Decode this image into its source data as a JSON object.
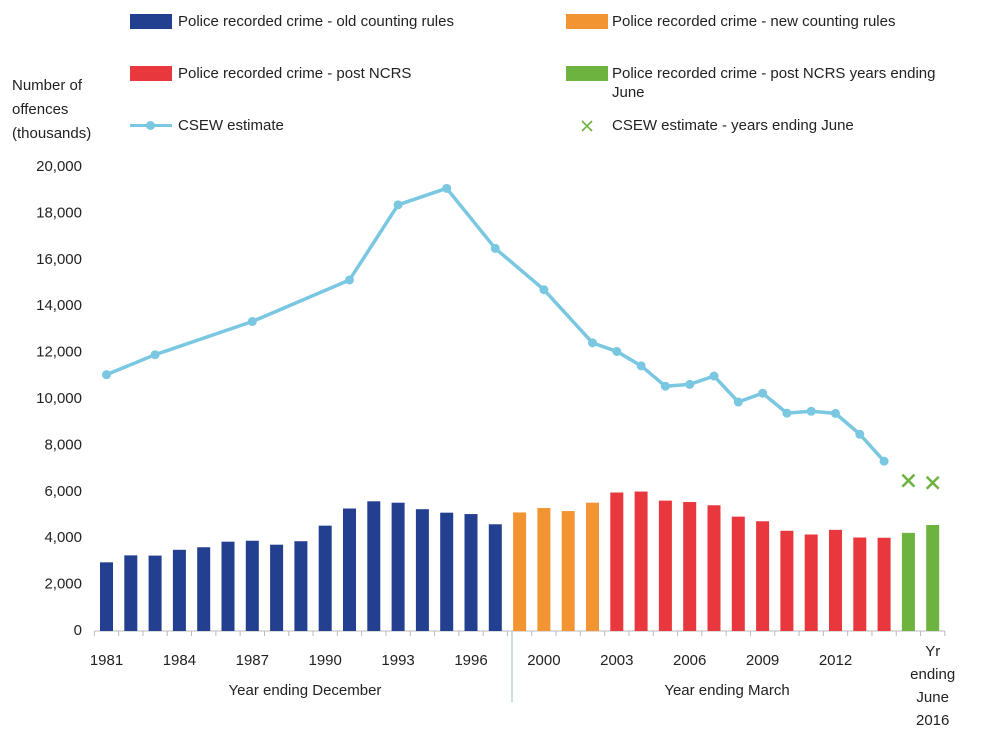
{
  "chart_data": {
    "type": "bar",
    "y_label": [
      "Number of",
      "offences",
      "(thousands)"
    ],
    "categories": [
      "1981",
      null,
      null,
      "1984",
      null,
      null,
      "1987",
      null,
      null,
      "1990",
      null,
      null,
      "1993",
      null,
      null,
      "1996",
      null,
      null,
      "2000",
      null,
      null,
      "2003",
      null,
      null,
      "2006",
      null,
      null,
      "2009",
      null,
      null,
      "2012",
      null,
      null,
      null,
      "Yr ending June 2016"
    ],
    "group_labels": [
      "Year ending December",
      "Year ending March"
    ],
    "ylim": [
      0,
      20000
    ],
    "yticks": [
      0,
      {
        "value": 2000,
        "label": "2,000"
      },
      {
        "value": 4000,
        "label": "4,000"
      },
      {
        "value": 6000,
        "label": "6,000"
      },
      {
        "value": 8000,
        "label": "8,000"
      },
      {
        "value": 10000,
        "label": "10,000"
      },
      {
        "value": 12000,
        "label": "12,000"
      },
      {
        "value": 14000,
        "label": "14,000"
      },
      {
        "value": 16000,
        "label": "16,000"
      },
      {
        "value": 18000,
        "label": "18,000"
      },
      {
        "value": 20000,
        "label": "20,000"
      }
    ],
    "grid": false,
    "series": [
      {
        "name": "Police recorded crime - old counting rules",
        "type": "bar",
        "color": "#233f8f",
        "values": [
          2960,
          3260,
          3250,
          3500,
          3610,
          3850,
          3890,
          3720,
          3870,
          4540,
          5280,
          5590,
          5530,
          5250,
          5100,
          5040,
          4600,
          null,
          null,
          null,
          null,
          null,
          null,
          null,
          null,
          null,
          null,
          null,
          null,
          null,
          null,
          null,
          null,
          null,
          null
        ]
      },
      {
        "name": "Police recorded crime - new counting rules",
        "type": "bar",
        "color": "#f39433",
        "values": [
          null,
          null,
          null,
          null,
          null,
          null,
          null,
          null,
          null,
          null,
          null,
          null,
          null,
          null,
          null,
          null,
          null,
          5110,
          5300,
          5170,
          5530,
          null,
          null,
          null,
          null,
          null,
          null,
          null,
          null,
          null,
          null,
          null,
          null,
          null,
          null
        ]
      },
      {
        "name": "Police recorded crime - post NCRS",
        "type": "bar",
        "color": "#e8383d",
        "values": [
          null,
          null,
          null,
          null,
          null,
          null,
          null,
          null,
          null,
          null,
          null,
          null,
          null,
          null,
          null,
          null,
          null,
          null,
          null,
          null,
          null,
          5970,
          6010,
          5620,
          5560,
          5420,
          4930,
          4730,
          4320,
          4160,
          4360,
          4030,
          4020,
          null,
          null
        ]
      },
      {
        "name": "Police recorded crime - post NCRS years ending June",
        "type": "bar",
        "color": "#6db33f",
        "values": [
          null,
          null,
          null,
          null,
          null,
          null,
          null,
          null,
          null,
          null,
          null,
          null,
          null,
          null,
          null,
          null,
          null,
          null,
          null,
          null,
          null,
          null,
          null,
          null,
          null,
          null,
          null,
          null,
          null,
          null,
          null,
          null,
          null,
          4230,
          4570
        ]
      },
      {
        "name": "CSEW estimate",
        "type": "line",
        "color": "#7ac7e2",
        "values": [
          11050,
          null,
          11910,
          null,
          null,
          null,
          13340,
          null,
          null,
          null,
          15130,
          null,
          18370,
          null,
          19080,
          null,
          16490,
          null,
          14710,
          null,
          12420,
          12050,
          11430,
          10550,
          10630,
          10990,
          9870,
          10250,
          9390,
          9470,
          9380,
          8480,
          7320,
          null,
          null
        ]
      },
      {
        "name": "CSEW estimate - years ending June",
        "type": "scatter",
        "color": "#6db33f",
        "values": [
          null,
          null,
          null,
          null,
          null,
          null,
          null,
          null,
          null,
          null,
          null,
          null,
          null,
          null,
          null,
          null,
          null,
          null,
          null,
          null,
          null,
          null,
          null,
          null,
          null,
          null,
          null,
          null,
          null,
          null,
          null,
          null,
          null,
          6480,
          6390
        ]
      }
    ]
  }
}
